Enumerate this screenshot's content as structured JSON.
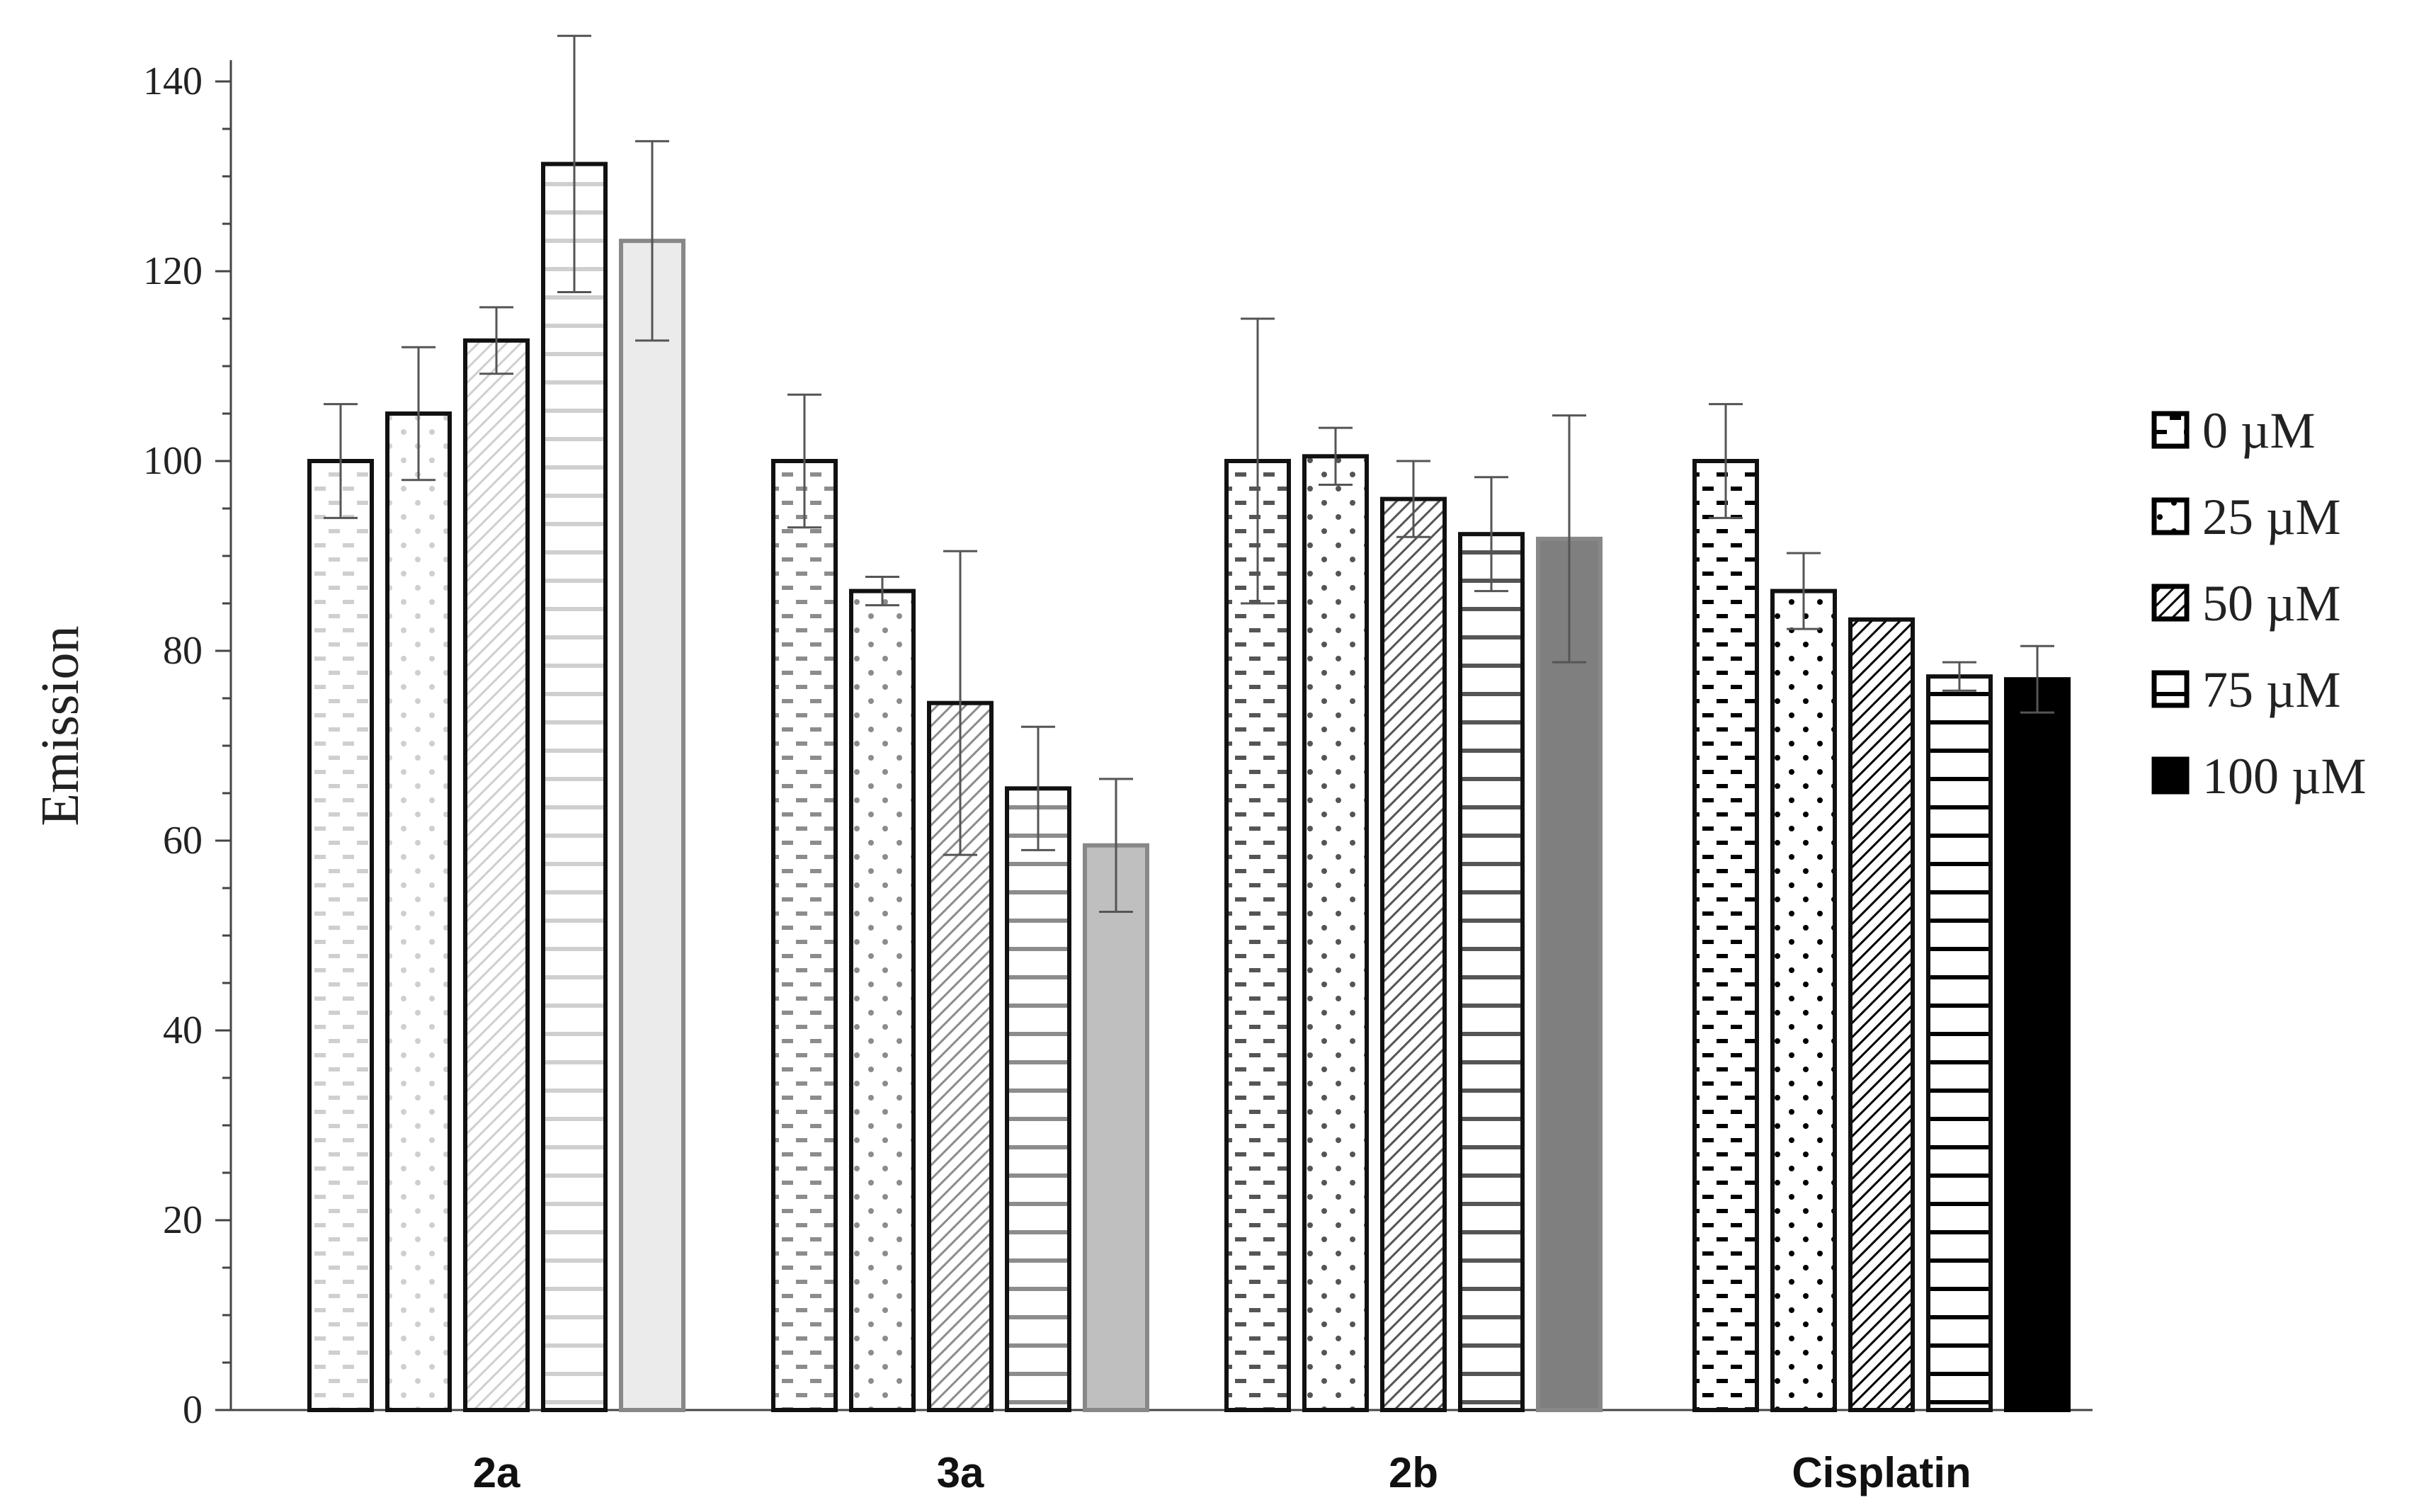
{
  "chart_data": {
    "type": "bar",
    "title": "",
    "xlabel": "",
    "ylabel": "Emission",
    "ylim": [
      0,
      140
    ],
    "yticks": [
      0,
      20,
      40,
      60,
      80,
      100,
      120,
      140
    ],
    "grid": false,
    "legend_placement": "right",
    "categories": [
      "2a",
      "3a",
      "2b",
      "Cisplatin"
    ],
    "series": [
      {
        "name": "0 µM",
        "pattern": "dashes",
        "values": [
          100,
          100,
          100,
          100
        ],
        "errors": [
          6,
          7,
          15,
          6
        ]
      },
      {
        "name": "25 µM",
        "pattern": "dots",
        "values": [
          105,
          86.3,
          100.5,
          86.3
        ],
        "errors": [
          7,
          1.5,
          3,
          4
        ]
      },
      {
        "name": "50 µM",
        "pattern": "diagonal",
        "values": [
          112.7,
          74.5,
          96,
          83.3
        ],
        "errors": [
          3.5,
          16,
          4,
          0
        ]
      },
      {
        "name": "75 µM",
        "pattern": "horizontal",
        "values": [
          131.3,
          65.5,
          92.3,
          77.3
        ],
        "errors": [
          13.5,
          6.5,
          6,
          1.5
        ]
      },
      {
        "name": "100 µM",
        "pattern": "solid",
        "values": [
          123.2,
          59.5,
          91.8,
          77
        ],
        "errors": [
          10.5,
          7,
          13,
          3.5
        ]
      }
    ],
    "group_pattern_colors": [
      "#cfcfcf",
      "#8c8c8c",
      "#555555",
      "#000000"
    ],
    "group_solid_fill": [
      "#ebebeb",
      "#bfbfbf",
      "#7f7f7f",
      "#000000"
    ]
  }
}
